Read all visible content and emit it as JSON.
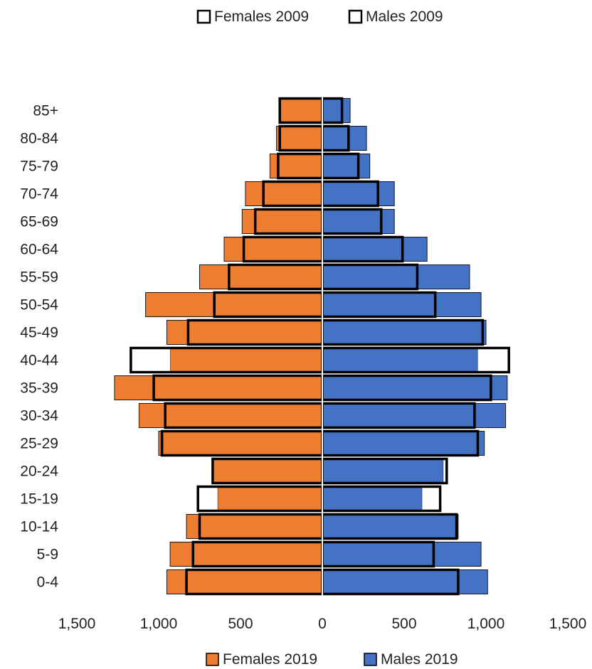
{
  "chart_data": {
    "type": "bar",
    "orientation": "horizontal",
    "style": "population-pyramid",
    "categories": [
      "0-4",
      "5-9",
      "10-14",
      "15-19",
      "20-24",
      "25-29",
      "30-34",
      "35-39",
      "40-44",
      "45-49",
      "50-54",
      "55-59",
      "60-64",
      "65-69",
      "70-74",
      "75-79",
      "80-84",
      "85+"
    ],
    "series": [
      {
        "name": "Females 2019",
        "side": "left",
        "style": "filled",
        "color": "#ED7D31",
        "values": [
          950,
          930,
          830,
          640,
          670,
          1000,
          1120,
          1270,
          930,
          950,
          1080,
          750,
          600,
          490,
          470,
          320,
          280,
          260
        ]
      },
      {
        "name": "Males 2019",
        "side": "right",
        "style": "filled",
        "color": "#4472C4",
        "values": [
          1010,
          970,
          830,
          610,
          740,
          990,
          1120,
          1130,
          950,
          1000,
          970,
          900,
          640,
          440,
          440,
          290,
          270,
          170
        ]
      },
      {
        "name": "Females 2009",
        "side": "left",
        "style": "outline",
        "color": "#000000",
        "values": [
          830,
          790,
          750,
          760,
          670,
          980,
          960,
          1030,
          1170,
          820,
          660,
          570,
          480,
          410,
          360,
          270,
          260,
          260
        ]
      },
      {
        "name": "Males 2009",
        "side": "right",
        "style": "outline",
        "color": "#000000",
        "values": [
          830,
          680,
          820,
          720,
          760,
          950,
          930,
          1030,
          1140,
          980,
          690,
          580,
          490,
          360,
          340,
          220,
          160,
          120
        ]
      }
    ],
    "x_ticks": [
      "1,500",
      "1,000",
      "500",
      "0",
      "500",
      "1,000",
      "1,500"
    ],
    "xlim": [
      -1500,
      1500
    ],
    "legend_top": [
      "Females 2009",
      "Males 2009"
    ],
    "legend_bottom": [
      "Females 2019",
      "Males 2019"
    ],
    "grid": false
  }
}
